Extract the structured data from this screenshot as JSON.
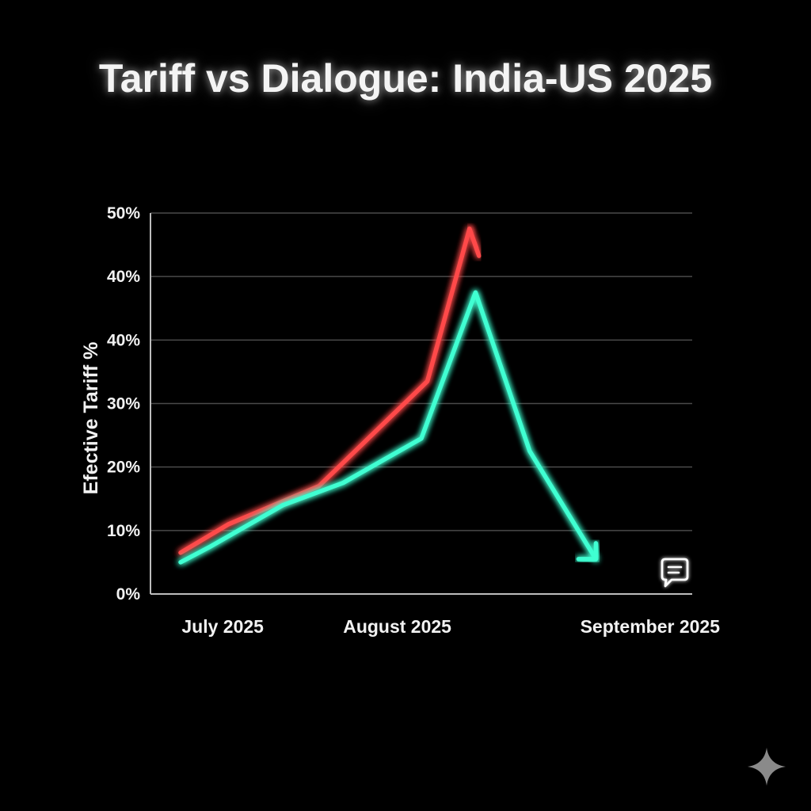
{
  "chart_data": {
    "type": "line",
    "title": "Tariff vs Dialogue: India-US 2025",
    "ylabel": "Efective Tariff %",
    "xlabel": "",
    "y_tick_labels": [
      "0%",
      "10%",
      "20%",
      "30%",
      "40%",
      "40%",
      "50%"
    ],
    "ylim": [
      0,
      60
    ],
    "x_tick_labels": [
      "July 2025",
      "August 2025",
      "September 2025"
    ],
    "x_tick_positions": [
      1.2,
      4.1,
      8.3
    ],
    "xlim": [
      0,
      9
    ],
    "grid": true,
    "legend": "none",
    "series": [
      {
        "color": "#ff4a4a",
        "arrow": "up",
        "x": [
          0.5,
          1.3,
          2.8,
          4.6,
          5.3
        ],
        "y": [
          6.5,
          11,
          17,
          33.5,
          57.5
        ]
      },
      {
        "color": "#3fffd2",
        "arrow": "down",
        "x": [
          0.5,
          1.0,
          2.2,
          3.2,
          4.5,
          5.4,
          6.3,
          7.4
        ],
        "y": [
          5,
          7.5,
          14,
          17.5,
          24.5,
          47.5,
          22.5,
          5.5
        ]
      }
    ],
    "annotations": [
      {
        "icon": "speech-bubble-icon"
      }
    ]
  },
  "colors": {
    "background": "#000000",
    "grid": "#4a4a4a",
    "axis": "#bdbdbd",
    "red_series": "#ff4a4a",
    "teal_series": "#3fffd2"
  },
  "icons": {
    "speech": "speech-bubble-icon",
    "sparkle": "sparkle-icon"
  }
}
